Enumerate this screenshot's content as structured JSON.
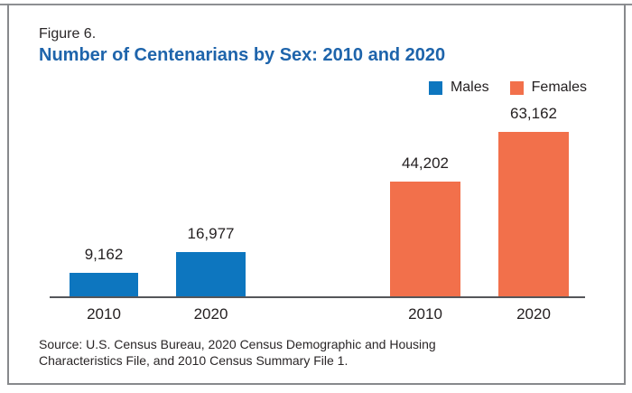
{
  "figure": {
    "label": "Figure 6.",
    "title": "Number of Centenarians by Sex: 2010 and 2020",
    "source_line1": "Source: U.S. Census Bureau, 2020 Census Demographic and Housing",
    "source_line2": "Characteristics File, and 2010 Census Summary File 1."
  },
  "legend": [
    {
      "label": "Males",
      "color_key": "males"
    },
    {
      "label": "Females",
      "color_key": "females"
    }
  ],
  "colors": {
    "males": "#0d76bf",
    "females": "#f2704b",
    "title_blue": "#1e64ab",
    "axis": "#55565a",
    "frame": "#87898c",
    "text": "#231f20"
  },
  "chart_data": {
    "type": "bar",
    "title": "Number of Centenarians by Sex: 2010 and 2020",
    "categories": [
      "2010",
      "2020"
    ],
    "series": [
      {
        "name": "Males",
        "values": [
          9162,
          16977
        ],
        "color": "#0d76bf"
      },
      {
        "name": "Females",
        "values": [
          44202,
          63162
        ],
        "color": "#f2704b"
      }
    ],
    "bars": [
      {
        "series": "males",
        "group": "Males",
        "x_label": "2010",
        "value": 9162,
        "value_label": "9,162"
      },
      {
        "series": "males",
        "group": "Males",
        "x_label": "2020",
        "value": 16977,
        "value_label": "16,977"
      },
      {
        "series": "females",
        "group": "Females",
        "x_label": "2010",
        "value": 44202,
        "value_label": "44,202"
      },
      {
        "series": "females",
        "group": "Females",
        "x_label": "2020",
        "value": 63162,
        "value_label": "63,162"
      }
    ],
    "ylim": [
      0,
      63162
    ],
    "grid": false,
    "y_axis_shown": false,
    "value_labels_shown": true,
    "legend_position": "top-right"
  }
}
